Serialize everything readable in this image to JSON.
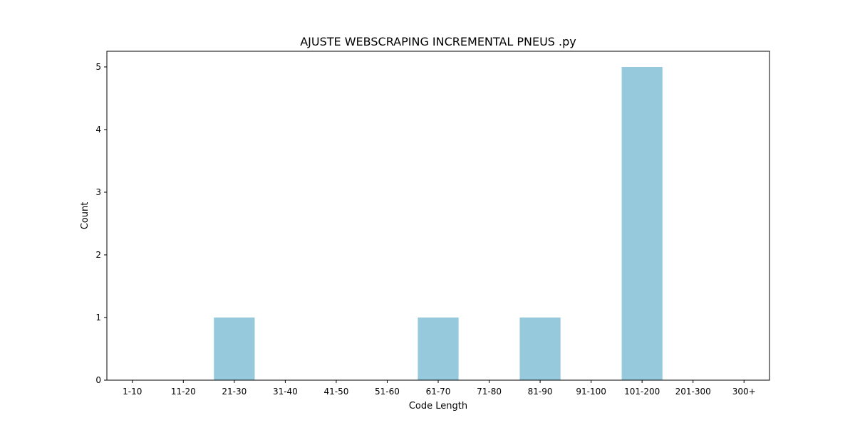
{
  "chart_data": {
    "type": "bar",
    "title": "AJUSTE WEBSCRAPING INCREMENTAL PNEUS .py",
    "xlabel": "Code Length",
    "ylabel": "Count",
    "categories": [
      "1-10",
      "11-20",
      "21-30",
      "31-40",
      "41-50",
      "51-60",
      "61-70",
      "71-80",
      "81-90",
      "91-100",
      "101-200",
      "201-300",
      "300+"
    ],
    "values": [
      0,
      0,
      1,
      0,
      0,
      0,
      1,
      0,
      1,
      0,
      5,
      0,
      0
    ],
    "ylim": [
      0,
      5.25
    ],
    "yticks": [
      0,
      1,
      2,
      3,
      4,
      5
    ],
    "bar_color": "#96c9dc",
    "grid": false,
    "legend": "none"
  }
}
